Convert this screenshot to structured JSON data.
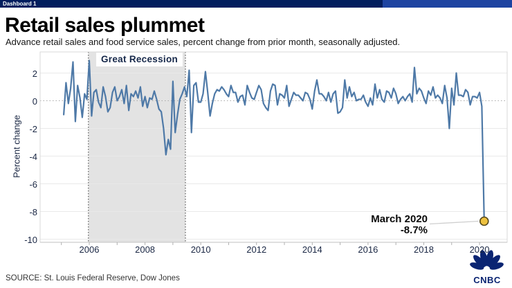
{
  "window": {
    "tab_label": "Dashboard 1"
  },
  "header": {
    "title": "Retail sales plummet",
    "subtitle": "Advance retail sales and food service sales, percent change from prior month, seasonally adjusted."
  },
  "chart_data": {
    "type": "line",
    "title": "Retail sales plummet",
    "xlabel": "",
    "ylabel": "Percent change",
    "x_ticks": [
      2006,
      2008,
      2010,
      2012,
      2014,
      2016,
      2018,
      2020
    ],
    "y_ticks": [
      2,
      0,
      -2,
      -4,
      -6,
      -8,
      -10
    ],
    "xlim": [
      2004.9,
      2020.6
    ],
    "ylim": [
      -10.2,
      3.5
    ],
    "grid": "horizontal",
    "zero_line": "dotted",
    "line_color": "#4e79a7",
    "recession_band": {
      "label": "Great Recession",
      "x_start": 2005.97,
      "x_end": 2009.45,
      "fill": "#e3e3e3",
      "border": "dotted-black"
    },
    "series": [
      {
        "name": "Advance retail and food service sales, % change from prior month",
        "start_year": 2005,
        "start_month": 2,
        "frequency": "monthly",
        "values": [
          -1.0,
          1.3,
          -0.2,
          0.9,
          2.8,
          -1.5,
          1.1,
          0.2,
          -1.2,
          0.5,
          0.1,
          2.9,
          -1.1,
          0.6,
          0.8,
          -0.1,
          -0.5,
          1.0,
          0.3,
          -0.8,
          -0.5,
          0.6,
          1.0,
          0.0,
          0.3,
          0.8,
          -0.2,
          1.1,
          -0.7,
          0.5,
          0.3,
          0.7,
          0.2,
          1.0,
          -0.4,
          0.3,
          -0.5,
          0.2,
          0.1,
          0.7,
          0.1,
          -0.6,
          -0.8,
          -2.0,
          -3.9,
          -2.8,
          -3.5,
          1.4,
          -2.3,
          -1.0,
          0.1,
          0.5,
          1.0,
          0.3,
          2.2,
          -2.3,
          1.1,
          1.3,
          -0.1,
          -0.1,
          0.5,
          2.1,
          0.6,
          -1.1,
          -0.2,
          0.5,
          0.8,
          0.7,
          1.0,
          0.8,
          0.5,
          0.3,
          1.1,
          0.6,
          0.6,
          -0.1,
          0.3,
          0.4,
          -0.3,
          1.1,
          0.6,
          0.2,
          0.1,
          0.6,
          1.1,
          0.8,
          -0.2,
          -0.5,
          -0.7,
          0.7,
          1.2,
          1.1,
          -0.3,
          0.5,
          0.4,
          0.2,
          1.1,
          -0.4,
          0.1,
          0.6,
          0.4,
          0.4,
          0.2,
          0.0,
          0.6,
          0.5,
          0.1,
          -0.6,
          0.7,
          1.5,
          0.5,
          0.5,
          0.3,
          0.0,
          0.6,
          -0.1,
          0.5,
          0.7,
          -0.9,
          -0.8,
          -0.5,
          1.5,
          0.2,
          1.0,
          0.3,
          0.6,
          0.0,
          0.1,
          0.1,
          0.4,
          -0.1,
          -0.4,
          0.2,
          -0.3,
          1.2,
          0.2,
          0.8,
          0.1,
          -0.1,
          0.7,
          0.6,
          0.2,
          0.9,
          0.5,
          -0.2,
          0.1,
          0.3,
          0.0,
          0.3,
          0.5,
          -0.1,
          2.4,
          0.5,
          0.9,
          0.7,
          0.2,
          -0.2,
          0.7,
          0.4,
          1.0,
          0.2,
          0.4,
          0.2,
          -0.2,
          1.1,
          0.2,
          -2.0,
          0.9,
          -0.3,
          2.0,
          0.4,
          0.4,
          0.3,
          0.8,
          0.6,
          -0.3,
          0.3,
          0.3,
          0.2,
          0.6,
          -0.4,
          -8.7
        ]
      }
    ],
    "annotation": {
      "line1": "March 2020",
      "line2": "-8.7%",
      "point_value": -8.7,
      "point_date": "2020-03",
      "marker_fill": "#edc13f",
      "marker_stroke": "#55491c"
    },
    "legend": "none"
  },
  "footer": {
    "source": "SOURCE: St. Louis Federal Reserve, Dow Jones",
    "logo_text": "CNBC"
  },
  "colors": {
    "topbar": "#001d5e",
    "topbar_right": "#1d43a1",
    "line": "#4e79a7",
    "band": "#e3e3e3",
    "marker": "#edc13f",
    "logo_navy": "#0a2472"
  }
}
